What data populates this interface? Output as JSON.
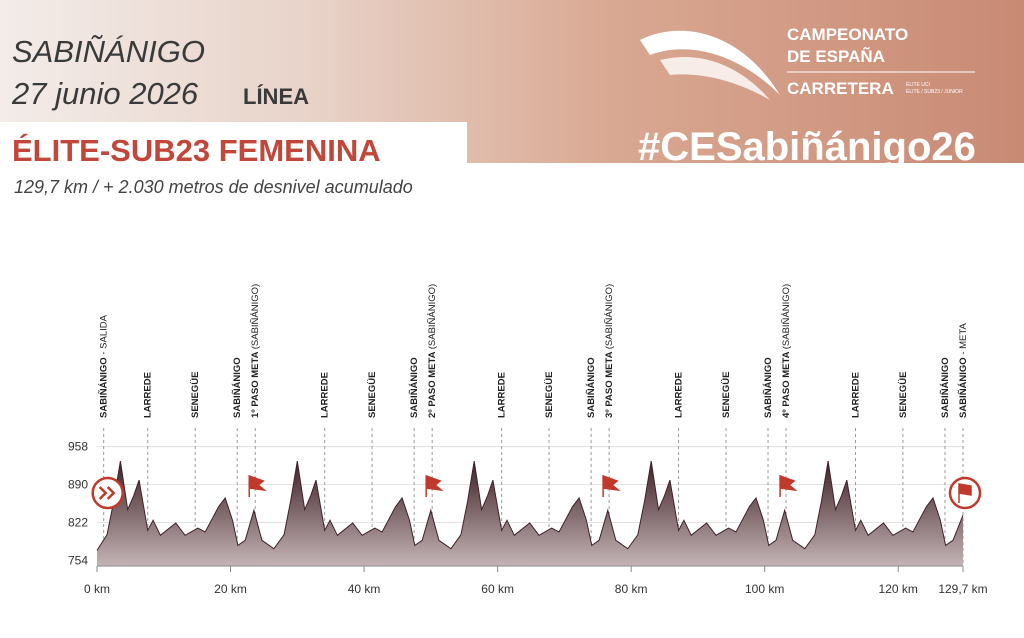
{
  "header": {
    "place": "SABIÑÁNIGO",
    "date": "27 junio 2026",
    "race_kind": "LÍNEA",
    "category": "ÉLITE-SUB23 FEMENINA",
    "subtitle": "129,7 km / + 2.030 metros de desnivel acumulado",
    "logo_line1": "CAMPEONATO",
    "logo_line2": "DE ESPAÑA",
    "logo_line3": "CARRETERA",
    "logo_small1": "ÉLITE UCI",
    "logo_small2": "ÉLITE / SUB23 / JUNIOR",
    "hashtag": "#CESabiñánigo26"
  },
  "chart_data": {
    "type": "area",
    "color": "#3f2228",
    "grid": true,
    "x": [
      0,
      1.5,
      2.5,
      3.5,
      4.6,
      5.5,
      6.3,
      7.6,
      8.4,
      9.5,
      11.8,
      13.2,
      15.1,
      16.2,
      18.2,
      19.2,
      20.3,
      21.1,
      22.2,
      23.5,
      24.7,
      26.5,
      28,
      29,
      30,
      31.1,
      32,
      32.8,
      34.1,
      34.9,
      36,
      38.3,
      39.7,
      41.6,
      42.7,
      44.7,
      45.7,
      46.8,
      47.6,
      48.7,
      50,
      51.2,
      53,
      54.5,
      55.5,
      56.5,
      57.6,
      58.5,
      59.3,
      60.6,
      61.4,
      62.5,
      64.8,
      66.2,
      68.1,
      69.2,
      71.2,
      72.2,
      73.3,
      74.1,
      75.2,
      76.5,
      77.7,
      79.5,
      81,
      82,
      83,
      84.1,
      85,
      85.8,
      87.1,
      87.9,
      89,
      91.3,
      92.7,
      94.6,
      95.7,
      97.7,
      98.7,
      99.8,
      100.6,
      101.7,
      103,
      104.2,
      106,
      107.5,
      108.5,
      109.5,
      110.6,
      111.5,
      112.3,
      113.6,
      114.4,
      115.5,
      117.8,
      119.2,
      121.1,
      122.2,
      124.2,
      125.2,
      126.3,
      127.1,
      128.2,
      129.7
    ],
    "values": [
      772,
      800,
      860,
      932,
      845,
      870,
      898,
      808,
      826,
      799,
      821,
      799,
      812,
      805,
      850,
      866,
      826,
      781,
      790,
      844,
      790,
      775,
      800,
      860,
      932,
      845,
      870,
      898,
      808,
      826,
      799,
      821,
      799,
      812,
      805,
      850,
      866,
      826,
      781,
      790,
      844,
      790,
      775,
      800,
      860,
      932,
      845,
      870,
      898,
      808,
      826,
      799,
      821,
      799,
      812,
      805,
      850,
      866,
      826,
      781,
      790,
      844,
      790,
      775,
      800,
      860,
      932,
      845,
      870,
      898,
      808,
      826,
      799,
      821,
      799,
      812,
      805,
      850,
      866,
      826,
      781,
      790,
      844,
      790,
      775,
      800,
      860,
      932,
      845,
      870,
      898,
      808,
      826,
      799,
      821,
      799,
      812,
      805,
      850,
      866,
      826,
      781,
      790,
      835
    ],
    "xlim": [
      0,
      129.7
    ],
    "ylim": [
      744,
      968
    ],
    "xticks": [
      {
        "value": 0,
        "label": "0 km"
      },
      {
        "value": 20,
        "label": "20 km"
      },
      {
        "value": 40,
        "label": "40 km"
      },
      {
        "value": 60,
        "label": "60 km"
      },
      {
        "value": 80,
        "label": "80 km"
      },
      {
        "value": 100,
        "label": "100 km"
      },
      {
        "value": 120,
        "label": "120 km"
      },
      {
        "value": 129.7,
        "label": "129,7 km"
      }
    ],
    "yticks": [
      754,
      822,
      890,
      958
    ],
    "waypoints": [
      {
        "km": 1,
        "label": "SABIÑÁNIGO",
        "note": "- SALIDA"
      },
      {
        "km": 7.6,
        "label": "LARREDE"
      },
      {
        "km": 14.7,
        "label": "SENEGÜE"
      },
      {
        "km": 21,
        "label": "SABIÑÁNIGO"
      },
      {
        "km": 23.7,
        "label": "1º PASO META",
        "note": "(SABIÑÁNIGO)"
      },
      {
        "km": 34.1,
        "label": "LARREDE"
      },
      {
        "km": 41.2,
        "label": "SENEGÜE"
      },
      {
        "km": 47.5,
        "label": "SABIÑÁNIGO"
      },
      {
        "km": 50.2,
        "label": "2º PASO META",
        "note": "(SABIÑÁNIGO)"
      },
      {
        "km": 60.6,
        "label": "LARREDE"
      },
      {
        "km": 67.7,
        "label": "SENEGÜE"
      },
      {
        "km": 74,
        "label": "SABIÑÁNIGO"
      },
      {
        "km": 76.7,
        "label": "3º PASO META",
        "note": "(SABIÑÁNIGO)"
      },
      {
        "km": 87.1,
        "label": "LARREDE"
      },
      {
        "km": 94.2,
        "label": "SENEGÜE"
      },
      {
        "km": 100.5,
        "label": "SABIÑÁNIGO"
      },
      {
        "km": 103.2,
        "label": "4º PASO META",
        "note": "(SABIÑÁNIGO)"
      },
      {
        "km": 113.6,
        "label": "LARREDE"
      },
      {
        "km": 120.7,
        "label": "SENEGÜE"
      },
      {
        "km": 127,
        "label": "SABIÑÁNIGO"
      },
      {
        "km": 129.7,
        "label": "SABIÑÁNIGO",
        "note": "- META"
      }
    ]
  }
}
